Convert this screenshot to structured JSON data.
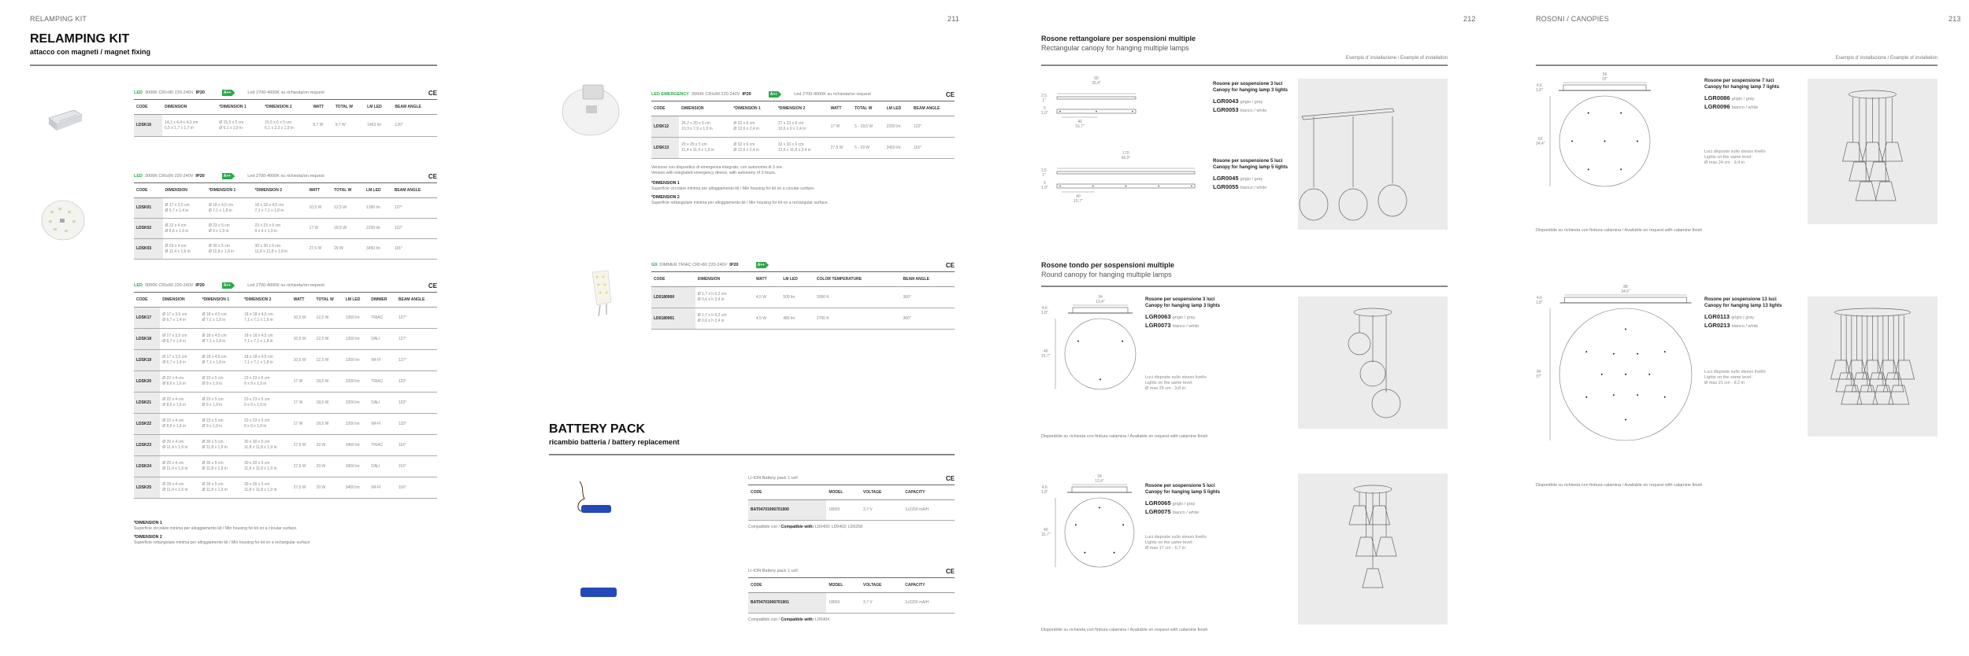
{
  "running_heads": {
    "left": "RELAMPING KIT",
    "p211": "211",
    "p212": "212",
    "right": "ROSONI / CANOPIES",
    "p213": "213"
  },
  "kit": {
    "title": "RELAMPING KIT",
    "subtitle": "attacco con magneti / magnet fixing",
    "tables": [
      {
        "spec": {
          "type": "LED",
          "text": "3000K CRI>80 220-240V",
          "ip": "IP20"
        },
        "energy": "A++",
        "note": "Led 2700-4000K su richiesta/on request",
        "ce": "CE",
        "columns": [
          "CODE",
          "DIMENSION",
          "*DIMENSION 1",
          "*DIMENSION 2",
          "WATT",
          "TOTAL W",
          "LM LED",
          "BEAM ANGLE"
        ],
        "rows": [
          [
            "LDSK16",
            [
              "14,1 x 4,4 x 4,3 cm",
              "5,5 x 1,7 x 1,7 in"
            ],
            [
              "Ø 15,5 x 5 cm",
              "Ø 6,1 x 1,9 in"
            ],
            [
              "15,5 x 6 x 5 cm",
              "6,1 x 2,3 x 1,9 in"
            ],
            "8,7 W",
            "9,7 W",
            "1463 lm",
            "120°"
          ]
        ]
      },
      {
        "spec": {
          "type": "LED",
          "text": "3000K CRI≥90 220-240V",
          "ip": "IP20"
        },
        "energy": "A++",
        "note": "Led 2700-4000K su richiesta/on request",
        "ce": "CE",
        "columns": [
          "CODE",
          "DIMENSION",
          "*DIMENSION 1",
          "*DIMENSION 2",
          "WATT",
          "TOTAL W",
          "LM LED",
          "BEAM ANGLE"
        ],
        "rows": [
          [
            "LDSK01",
            [
              "Ø 17 x 3,5 cm",
              "Ø 6,7 x 1,4 in"
            ],
            [
              "Ø 18 x 4,5 cm",
              "Ø 7,1 x 1,8 in"
            ],
            [
              "18 x 18 x 4,5 cm",
              "7,1 x 7,1 x 1,8 in"
            ],
            "10,5 W",
            "12,5 W",
            "1350 lm",
            "127°"
          ],
          [
            "LDSK02",
            [
              "Ø 22 x 4 cm",
              "Ø 8,6 x 1,6 in"
            ],
            [
              "Ø 23 x 5 cm",
              "Ø 9 x 1,9 in"
            ],
            [
              "23 x 23 x 5 cm",
              "9 x 9 x 1,9 in"
            ],
            "17 W",
            "18,5 W",
            "2200 lm",
            "122°"
          ],
          [
            "LDSK03",
            [
              "Ø 29 x 4 cm",
              "Ø 11,4 x 1,6 in"
            ],
            [
              "Ø 30 x 5 cm",
              "Ø 11,8 x 1,9 in"
            ],
            [
              "30 x 30 x 5 cm",
              "11,8 x 11,8 x 1,9 in"
            ],
            "27,5 W",
            "29 W",
            "3450 lm",
            "116°"
          ]
        ]
      },
      {
        "spec": {
          "type": "LED",
          "text": "3000K CRI≥90 220-240V",
          "ip": "IP20"
        },
        "energy": "A++",
        "note": "Led 2700-4000K su richiesta/on request",
        "ce": "CE",
        "columns": [
          "CODE",
          "DIMENSION",
          "*DIMENSION 1",
          "*DIMENSION 2",
          "WATT",
          "TOTAL W",
          "LM LED",
          "DIMMER",
          "BEAM ANGLE"
        ],
        "rows": [
          [
            "LDSK17",
            [
              "Ø 17 x 3,5 cm",
              "Ø 6,7 x 1,4 in"
            ],
            [
              "Ø 18 x 4,5 cm",
              "Ø 7,1 x 1,8 in"
            ],
            [
              "18 x 18 x 4,5 cm",
              "7,1 x 7,1 x 1,8 in"
            ],
            "10,5 W",
            "12,5 W",
            "1350 lm",
            "TRIAC",
            "127°"
          ],
          [
            "LDSK18",
            [
              "Ø 17 x 3,5 cm",
              "Ø 6,7 x 1,4 in"
            ],
            [
              "Ø 18 x 4,5 cm",
              "Ø 7,1 x 1,8 in"
            ],
            [
              "18 x 18 x 4,5 cm",
              "7,1 x 7,1 x 1,8 in"
            ],
            "10,5 W",
            "12,5 W",
            "1350 lm",
            "DALI",
            "127°"
          ],
          [
            "LDSK19",
            [
              "Ø 17 x 3,5 cm",
              "Ø 6,7 x 1,4 in"
            ],
            [
              "Ø 18 x 4,5 cm",
              "Ø 7,1 x 1,8 in"
            ],
            [
              "18 x 18 x 4,5 cm",
              "7,1 x 7,1 x 1,8 in"
            ],
            "10,5 W",
            "12,5 W",
            "1350 lm",
            "WI-FI",
            "127°"
          ],
          [
            "LDSK20",
            [
              "Ø 22 x 4 cm",
              "Ø 8,6 x 1,6 in"
            ],
            [
              "Ø 23 x 5 cm",
              "Ø 9 x 1,9 in"
            ],
            [
              "23 x 23 x 5 cm",
              "9 x 9 x 1,9 in"
            ],
            "17 W",
            "18,5 W",
            "2200 lm",
            "TRIAC",
            "122°"
          ],
          [
            "LDSK21",
            [
              "Ø 22 x 4 cm",
              "Ø 8,6 x 1,6 in"
            ],
            [
              "Ø 23 x 5 cm",
              "Ø 9 x 1,9 in"
            ],
            [
              "23 x 23 x 5 cm",
              "9 x 9 x 1,9 in"
            ],
            "17 W",
            "18,5 W",
            "2200 lm",
            "DALI",
            "122°"
          ],
          [
            "LDSK22",
            [
              "Ø 22 x 4 cm",
              "Ø 8,6 x 1,6 in"
            ],
            [
              "Ø 23 x 5 cm",
              "Ø 9 x 1,9 in"
            ],
            [
              "23 x 23 x 5 cm",
              "9 x 9 x 1,9 in"
            ],
            "17 W",
            "18,5 W",
            "2200 lm",
            "WI-FI",
            "122°"
          ],
          [
            "LDSK23",
            [
              "Ø 29 x 4 cm",
              "Ø 11,4 x 1,6 in"
            ],
            [
              "Ø 30 x 5 cm",
              "Ø 11,8 x 1,9 in"
            ],
            [
              "30 x 30 x 5 cm",
              "11,8 x 11,8 x 1,9 in"
            ],
            "27,5 W",
            "29 W",
            "3450 lm",
            "TRIAC",
            "116°"
          ],
          [
            "LDSK24",
            [
              "Ø 29 x 4 cm",
              "Ø 11,4 x 1,6 in"
            ],
            [
              "Ø 30 x 5 cm",
              "Ø 11,8 x 1,9 in"
            ],
            [
              "30 x 30 x 5 cm",
              "11,8 x 11,8 x 1,9 in"
            ],
            "27,5 W",
            "29 W",
            "3450 lm",
            "DALI",
            "116°"
          ],
          [
            "LDSK25",
            [
              "Ø 29 x 4 cm",
              "Ø 11,4 x 1,6 in"
            ],
            [
              "Ø 30 x 5 cm",
              "Ø 11,8 x 1,9 in"
            ],
            [
              "30 x 30 x 5 cm",
              "11,8 x 11,8 x 1,9 in"
            ],
            "27,5 W",
            "29 W",
            "3450 lm",
            "WI-FI",
            "116°"
          ]
        ]
      },
      {
        "spec": {
          "type": "LED EMERGENCY",
          "text": "3000K CRI≥90 220-240V",
          "ip": "IP20"
        },
        "energy": "A++",
        "note": "Led 2700-4000K su richiesta/on request",
        "ce": "CE",
        "columns": [
          "CODE",
          "DIMENSION",
          "*DIMENSION 1",
          "*DIMENSION 2",
          "WATT",
          "TOTAL W",
          "LM LED",
          "BEAM ANGLE"
        ],
        "rows": [
          [
            "LDSK12",
            [
              "26,2 x 20 x 5 cm",
              "10,3 x 7,9 x 1,9 in"
            ],
            [
              "Ø 32 x 6 cm",
              "Ø 12,6 x 2,4 in"
            ],
            [
              "27 x 23 x 6 cm",
              "10,6 x 9 x 2,4 in"
            ],
            "17 W",
            "5 - 18,5 W",
            "2200 lm",
            "122°"
          ],
          [
            "LDSK13",
            [
              "29 x 29 x 5 cm",
              "11,4 x 11,4 x 1,9 in"
            ],
            [
              "Ø 32 x 6 cm",
              "Ø 12,6 x 2,4 in"
            ],
            [
              "32 x 30 x 6 cm",
              "12,6 x 11,8 x 2,4 in"
            ],
            "27,5 W",
            "5 - 29 W",
            "3450 lm",
            "116°"
          ]
        ]
      },
      {
        "spec": {
          "type": "G9",
          "text": "DIMMER TRIAC CRI>80 220-240V",
          "ip": "IP20"
        },
        "energy": "A++",
        "note": "",
        "ce": "CE",
        "columns": [
          "CODE",
          "DIMENSION",
          "WATT",
          "LM LED",
          "COLOR TEMPERATURE",
          "BEAM ANGLE"
        ],
        "rows": [
          [
            "LD0180900",
            [
              "Ø 1,7 x h 6,2 cm",
              "Ø 0,6 x h 2,4 in"
            ],
            "4,5 W",
            "500 lm",
            "3000 K",
            "360°"
          ],
          [
            "LD0180901",
            [
              "Ø 1,7 x h 6,2 cm",
              "Ø 0,6 x h 2,4 in"
            ],
            "4,5 W",
            "480 lm",
            "2700 K",
            "360°"
          ]
        ]
      }
    ],
    "emergency_note": [
      "Versione con dispositivo di emergenza integrato, con autonomia di 3 ore.",
      "Version with integrated emergency device, with autonomy of 3 hours."
    ],
    "dimension_notes": [
      {
        "title": "*DIMENSION 1",
        "text": "Superficie circolare minima per alloggiamento kit / Min housing for kit on a circular surface."
      },
      {
        "title": "*DIMENSION 2",
        "text": "Superficie rettangolare minima per alloggiamento kit / Min housing for kit on a rectangular surface."
      }
    ]
  },
  "battery": {
    "title": "BATTERY PACK",
    "subtitle": "ricambio batteria / battery replacement",
    "tables": [
      {
        "spec": "LI-ION Battery pack 1 cell",
        "ce": "CE",
        "columns": [
          "CODE",
          "MODEL",
          "VOLTAGE",
          "CAPACITY"
        ],
        "rows": [
          [
            "BAT04701906701900",
            "18650",
            "3,7 V",
            "1x2200 mA/H"
          ]
        ],
        "compat_label": "Compatibile con /",
        "compat_label_en": "Compatible with:",
        "compat": "LD0400; LD0402; LD0258"
      },
      {
        "spec": "LI-ION Battery pack 1 cell",
        "ce": "CE",
        "columns": [
          "CODE",
          "MODEL",
          "VOLTAGE",
          "CAPACITY"
        ],
        "rows": [
          [
            "BAT04701906701901",
            "18650",
            "3,7 V",
            "1x2200 mA/H"
          ]
        ],
        "compat_label": "Compatibile con /",
        "compat_label_en": "Compatible with:",
        "compat": "LD0404"
      }
    ]
  },
  "canopies": {
    "rect_section": {
      "title": "Rosone rettangolare per sospensioni multiple",
      "subtitle": "Rectangular canopy for hanging multiple lamps"
    },
    "round_section": {
      "title": "Rosone tondo per sospensioni multiple",
      "subtitle": "Round canopy for hanging multiple lamps"
    },
    "example_label": "Esempio d' installazione / Example of installation",
    "finish_note": "Disponibile su richiesta con finitura calamina / Available on request with calamine finish",
    "items": [
      {
        "name_it": "Rosone per sospensione 3 luci",
        "name_en": "Canopy for hanging lamp 3 lights",
        "shape": "rect",
        "lights": 3,
        "codes": [
          {
            "code": "LGR0043",
            "finish": "grigio / gray"
          },
          {
            "code": "LGR0053",
            "finish": "bianco / white"
          }
        ],
        "dims": {
          "width": [
            "90",
            "35,4\""
          ],
          "h1": [
            "2,5",
            "1\""
          ],
          "h2": [
            "5",
            "1,9\""
          ],
          "step": [
            "40",
            "15,7\""
          ]
        }
      },
      {
        "name_it": "Rosone per sospensione 5 luci",
        "name_en": "Canopy for hanging lamp 5 lights",
        "shape": "rect",
        "lights": 5,
        "codes": [
          {
            "code": "LGR0045",
            "finish": "grigio / gray"
          },
          {
            "code": "LGR0055",
            "finish": "bianco / white"
          }
        ],
        "dims": {
          "width": [
            "170",
            "66,9\""
          ],
          "h1": [
            "2,5",
            "1\""
          ],
          "h2": [
            "5",
            "1,9\""
          ],
          "step": [
            "40",
            "15,7\""
          ]
        }
      },
      {
        "name_it": "Rosone per sospensione 3 luci",
        "name_en": "Canopy for hanging lamp 3 lights",
        "shape": "round",
        "lights": 3,
        "codes": [
          {
            "code": "LGR0063",
            "finish": "grigio / gray"
          },
          {
            "code": "LGR0073",
            "finish": "bianco / white"
          }
        ],
        "dims": {
          "width": [
            "34",
            "13,4\""
          ],
          "h1": [
            "4,6",
            "1,8\""
          ],
          "dia": [
            "40",
            "15,7\""
          ]
        },
        "note": [
          "Luci disposte sullo stesso livello",
          "Lights on the same level:",
          "Ø max 25 cm - 9,8 in"
        ]
      },
      {
        "name_it": "Rosone per sospensione 5 luci",
        "name_en": "Canopy for hanging lamp 5 lights",
        "shape": "round",
        "lights": 5,
        "codes": [
          {
            "code": "LGR0065",
            "finish": "grigio / gray"
          },
          {
            "code": "LGR0075",
            "finish": "bianco / white"
          }
        ],
        "dims": {
          "width": [
            "34",
            "13,4\""
          ],
          "h1": [
            "4,6",
            "1,8\""
          ],
          "dia": [
            "40",
            "15,7\""
          ]
        },
        "note": [
          "Luci disposte sullo stesso livello",
          "Lights on the same level:",
          "Ø max 17 cm - 6,7 in"
        ]
      },
      {
        "name_it": "Rosone per sospensione 7 luci",
        "name_en": "Canopy for hanging lamp 7 lights",
        "shape": "round",
        "lights": 7,
        "codes": [
          {
            "code": "LGR0086",
            "finish": "grigio / gray"
          },
          {
            "code": "LGR0096",
            "finish": "bianco / white"
          }
        ],
        "dims": {
          "width": [
            "56",
            "22\""
          ],
          "h1": [
            "4,6",
            "1,8\""
          ],
          "dia": [
            "62",
            "24,4\""
          ]
        },
        "note": [
          "Luci disposte sullo stesso livello",
          "Lights on the same level:",
          "Ø max 24 cm - 9,4 in"
        ]
      },
      {
        "name_it": "Rosone per sospensione 13 luci",
        "name_en": "Canopy for hanging lamp 13 lights",
        "shape": "round",
        "lights": 13,
        "codes": [
          {
            "code": "LGR0113",
            "finish": "grigio / gray"
          },
          {
            "code": "LGR0213",
            "finish": "bianco / white"
          }
        ],
        "dims": {
          "width": [
            "88",
            "34,6\""
          ],
          "h1": [
            "4,6",
            "1,8\""
          ],
          "dia": [
            "94",
            "37\""
          ]
        },
        "note": [
          "Luci disposte sullo stesso livello",
          "Lights on the same level:",
          "Ø max 21 cm - 8,2 in"
        ]
      }
    ]
  },
  "colors": {
    "energy_green": "#2aa84a",
    "code_cell": "#ebebeb",
    "battery_blue": "#2449b8"
  }
}
